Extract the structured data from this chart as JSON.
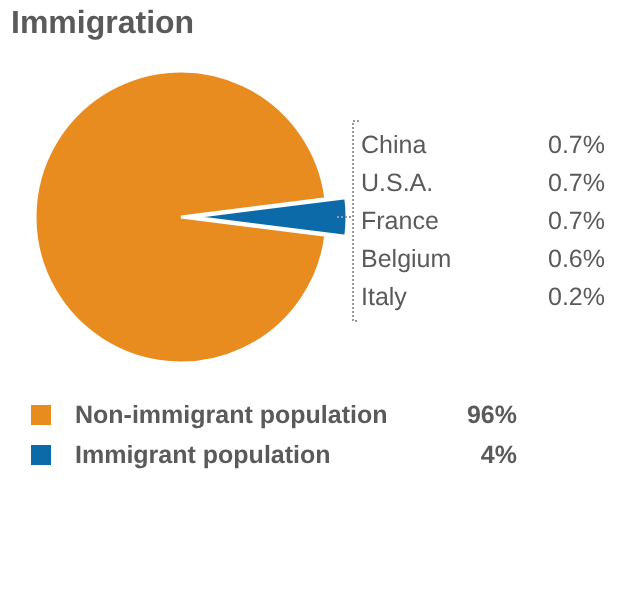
{
  "chart_data": {
    "type": "pie",
    "title": "Immigration",
    "categories": [
      "Non-immigrant population",
      "Immigrant population"
    ],
    "values": [
      96,
      4
    ],
    "value_labels": [
      "96%",
      "4%"
    ],
    "colors": [
      "#e98c1f",
      "#0d6aa8"
    ],
    "legend": "bottom",
    "annotations": [
      "China",
      "0.7%",
      "U.S.A.",
      "0.7%",
      "France",
      "0.7%",
      "Belgium",
      "0.6%",
      "Italy",
      "0.2%"
    ]
  }
}
